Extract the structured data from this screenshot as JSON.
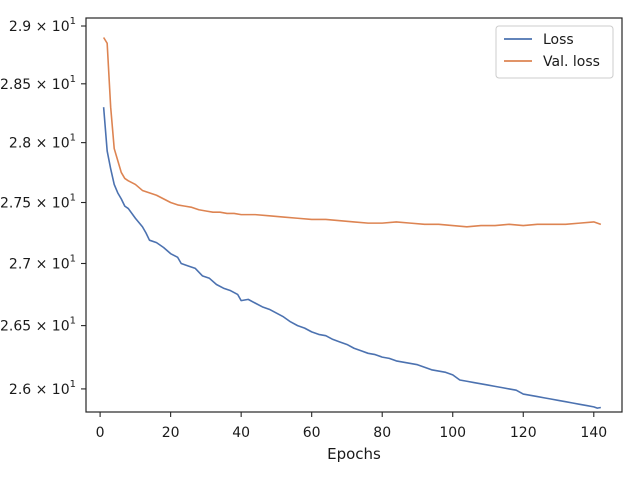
{
  "chart_data": {
    "type": "line",
    "xlabel": "Epochs",
    "ylabel": "",
    "xlim": [
      -4,
      148
    ],
    "ylim": [
      25.82,
      29.07
    ],
    "y_scale": "log",
    "grid": false,
    "legend_placement": "top-right",
    "x_ticks": [
      0,
      20,
      40,
      60,
      80,
      100,
      120,
      140
    ],
    "x_tick_labels": [
      "0",
      "20",
      "40",
      "60",
      "80",
      "100",
      "120",
      "140"
    ],
    "y_ticks": [
      {
        "value": 26.0,
        "mantissa": "2.6",
        "base": "10",
        "exp": "1"
      },
      {
        "value": 26.5,
        "mantissa": "2.65",
        "base": "10",
        "exp": "1"
      },
      {
        "value": 27.0,
        "mantissa": "2.7",
        "base": "10",
        "exp": "1"
      },
      {
        "value": 27.5,
        "mantissa": "2.75",
        "base": "10",
        "exp": "1"
      },
      {
        "value": 28.0,
        "mantissa": "2.8",
        "base": "10",
        "exp": "1"
      },
      {
        "value": 28.5,
        "mantissa": "2.85",
        "base": "10",
        "exp": "1"
      },
      {
        "value": 29.0,
        "mantissa": "2.9",
        "base": "10",
        "exp": "1"
      }
    ],
    "times_symbol": "×",
    "series": [
      {
        "name": "Loss",
        "color": "#4c72b0",
        "points": [
          [
            1,
            28.3
          ],
          [
            2,
            27.93
          ],
          [
            3,
            27.78
          ],
          [
            4,
            27.65
          ],
          [
            5,
            27.58
          ],
          [
            6,
            27.53
          ],
          [
            7,
            27.47
          ],
          [
            8,
            27.45
          ],
          [
            10,
            27.37
          ],
          [
            12,
            27.3
          ],
          [
            13,
            27.25
          ],
          [
            14,
            27.19
          ],
          [
            16,
            27.17
          ],
          [
            18,
            27.13
          ],
          [
            20,
            27.08
          ],
          [
            22,
            27.05
          ],
          [
            23,
            27.0
          ],
          [
            25,
            26.98
          ],
          [
            27,
            26.96
          ],
          [
            29,
            26.9
          ],
          [
            31,
            26.88
          ],
          [
            33,
            26.83
          ],
          [
            35,
            26.8
          ],
          [
            37,
            26.78
          ],
          [
            39,
            26.75
          ],
          [
            40,
            26.7
          ],
          [
            42,
            26.71
          ],
          [
            44,
            26.68
          ],
          [
            46,
            26.65
          ],
          [
            48,
            26.63
          ],
          [
            50,
            26.6
          ],
          [
            52,
            26.57
          ],
          [
            54,
            26.53
          ],
          [
            56,
            26.5
          ],
          [
            58,
            26.48
          ],
          [
            60,
            26.45
          ],
          [
            62,
            26.43
          ],
          [
            64,
            26.42
          ],
          [
            66,
            26.39
          ],
          [
            68,
            26.37
          ],
          [
            70,
            26.35
          ],
          [
            72,
            26.32
          ],
          [
            74,
            26.3
          ],
          [
            76,
            26.28
          ],
          [
            78,
            26.27
          ],
          [
            80,
            26.25
          ],
          [
            82,
            26.24
          ],
          [
            84,
            26.22
          ],
          [
            86,
            26.21
          ],
          [
            88,
            26.2
          ],
          [
            90,
            26.19
          ],
          [
            92,
            26.17
          ],
          [
            94,
            26.15
          ],
          [
            96,
            26.14
          ],
          [
            98,
            26.13
          ],
          [
            100,
            26.11
          ],
          [
            102,
            26.07
          ],
          [
            104,
            26.06
          ],
          [
            106,
            26.05
          ],
          [
            108,
            26.04
          ],
          [
            110,
            26.03
          ],
          [
            112,
            26.02
          ],
          [
            114,
            26.01
          ],
          [
            116,
            26.0
          ],
          [
            118,
            25.99
          ],
          [
            120,
            25.96
          ],
          [
            122,
            25.95
          ],
          [
            124,
            25.94
          ],
          [
            126,
            25.93
          ],
          [
            128,
            25.92
          ],
          [
            130,
            25.91
          ],
          [
            132,
            25.9
          ],
          [
            134,
            25.89
          ],
          [
            136,
            25.88
          ],
          [
            138,
            25.87
          ],
          [
            140,
            25.86
          ],
          [
            141,
            25.85
          ],
          [
            142,
            25.855
          ]
        ]
      },
      {
        "name": "Val. loss",
        "color": "#dd8452",
        "points": [
          [
            1,
            28.9
          ],
          [
            2,
            28.85
          ],
          [
            3,
            28.3
          ],
          [
            4,
            27.95
          ],
          [
            5,
            27.85
          ],
          [
            6,
            27.75
          ],
          [
            7,
            27.7
          ],
          [
            8,
            27.68
          ],
          [
            10,
            27.65
          ],
          [
            12,
            27.6
          ],
          [
            14,
            27.58
          ],
          [
            16,
            27.56
          ],
          [
            18,
            27.53
          ],
          [
            20,
            27.5
          ],
          [
            22,
            27.48
          ],
          [
            24,
            27.47
          ],
          [
            26,
            27.46
          ],
          [
            28,
            27.44
          ],
          [
            30,
            27.43
          ],
          [
            32,
            27.42
          ],
          [
            34,
            27.42
          ],
          [
            36,
            27.41
          ],
          [
            38,
            27.41
          ],
          [
            40,
            27.4
          ],
          [
            44,
            27.4
          ],
          [
            48,
            27.39
          ],
          [
            52,
            27.38
          ],
          [
            56,
            27.37
          ],
          [
            60,
            27.36
          ],
          [
            64,
            27.36
          ],
          [
            68,
            27.35
          ],
          [
            72,
            27.34
          ],
          [
            76,
            27.33
          ],
          [
            80,
            27.33
          ],
          [
            84,
            27.34
          ],
          [
            88,
            27.33
          ],
          [
            92,
            27.32
          ],
          [
            96,
            27.32
          ],
          [
            100,
            27.31
          ],
          [
            104,
            27.3
          ],
          [
            108,
            27.31
          ],
          [
            112,
            27.31
          ],
          [
            116,
            27.32
          ],
          [
            120,
            27.31
          ],
          [
            124,
            27.32
          ],
          [
            128,
            27.32
          ],
          [
            132,
            27.32
          ],
          [
            136,
            27.33
          ],
          [
            140,
            27.34
          ],
          [
            141,
            27.33
          ],
          [
            142,
            27.32
          ]
        ]
      }
    ]
  }
}
